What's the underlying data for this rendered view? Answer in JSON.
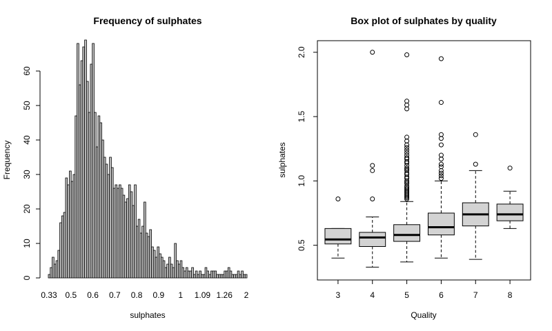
{
  "chart_data": [
    {
      "type": "bar",
      "title": "Frequency of sulphates",
      "xlabel": "sulphates",
      "ylabel": "Frequency",
      "ylim": [
        0,
        70
      ],
      "y_ticks": [
        0,
        10,
        20,
        30,
        40,
        50,
        60
      ],
      "x_tick_labels": [
        "0.33",
        "0.5",
        "0.6",
        "0.7",
        "0.8",
        "0.9",
        "1",
        "1.09",
        "1.26",
        "2"
      ],
      "bar_color": "#bebebe",
      "values": [
        1,
        3,
        6,
        4,
        5,
        8,
        16,
        18,
        19,
        29,
        27,
        31,
        28,
        30,
        47,
        68,
        56,
        63,
        67,
        69,
        57,
        48,
        62,
        68,
        48,
        38,
        47,
        45,
        40,
        35,
        33,
        30,
        35,
        32,
        26,
        27,
        26,
        27,
        26,
        24,
        22,
        23,
        27,
        25,
        21,
        27,
        15,
        17,
        13,
        15,
        22,
        13,
        12,
        14,
        9,
        8,
        6,
        9,
        7,
        6,
        5,
        3,
        4,
        6,
        4,
        3,
        10,
        5,
        4,
        5,
        3,
        2,
        3,
        2,
        2,
        3,
        1,
        2,
        1,
        2,
        1,
        1,
        3,
        2,
        1,
        2,
        2,
        2,
        1,
        1,
        1,
        1,
        2,
        2,
        3,
        2,
        1,
        1,
        1,
        2,
        1,
        2,
        1,
        1
      ]
    },
    {
      "type": "box",
      "title": "Box plot of sulphates by quality",
      "xlabel": "Quality",
      "ylabel": "sulphates",
      "ylim": [
        0.23,
        2.09
      ],
      "y_ticks": [
        0.5,
        1.0,
        1.5,
        2.0
      ],
      "y_tick_labels": [
        "0.5",
        "1.0",
        "1.5",
        "2.0"
      ],
      "box_color": "#d3d3d3",
      "groups": [
        {
          "label": "3",
          "min": 0.4,
          "q1": 0.51,
          "median": 0.545,
          "q3": 0.63,
          "max": 0.63,
          "outliers": [
            0.86
          ]
        },
        {
          "label": "4",
          "min": 0.33,
          "q1": 0.49,
          "median": 0.56,
          "q3": 0.6,
          "max": 0.72,
          "outliers": [
            0.86,
            1.08,
            1.12,
            2.0
          ]
        },
        {
          "label": "5",
          "min": 0.37,
          "q1": 0.53,
          "median": 0.58,
          "q3": 0.66,
          "max": 0.84,
          "outliers": [
            0.86,
            0.87,
            0.88,
            0.89,
            0.9,
            0.91,
            0.92,
            0.93,
            0.94,
            0.95,
            0.96,
            0.98,
            0.99,
            1.0,
            1.02,
            1.03,
            1.05,
            1.06,
            1.08,
            1.09,
            1.1,
            1.12,
            1.14,
            1.15,
            1.17,
            1.18,
            1.2,
            1.22,
            1.24,
            1.26,
            1.28,
            1.31,
            1.34,
            1.56,
            1.59,
            1.62,
            1.98
          ]
        },
        {
          "label": "6",
          "min": 0.4,
          "q1": 0.58,
          "median": 0.64,
          "q3": 0.75,
          "max": 1.0,
          "outliers": [
            1.02,
            1.04,
            1.06,
            1.08,
            1.11,
            1.13,
            1.17,
            1.2,
            1.28,
            1.33,
            1.36,
            1.61,
            1.95
          ]
        },
        {
          "label": "7",
          "min": 0.39,
          "q1": 0.65,
          "median": 0.74,
          "q3": 0.83,
          "max": 1.08,
          "outliers": [
            1.13,
            1.36
          ]
        },
        {
          "label": "8",
          "min": 0.63,
          "q1": 0.69,
          "median": 0.74,
          "q3": 0.82,
          "max": 0.92,
          "outliers": [
            1.1
          ]
        }
      ]
    }
  ]
}
